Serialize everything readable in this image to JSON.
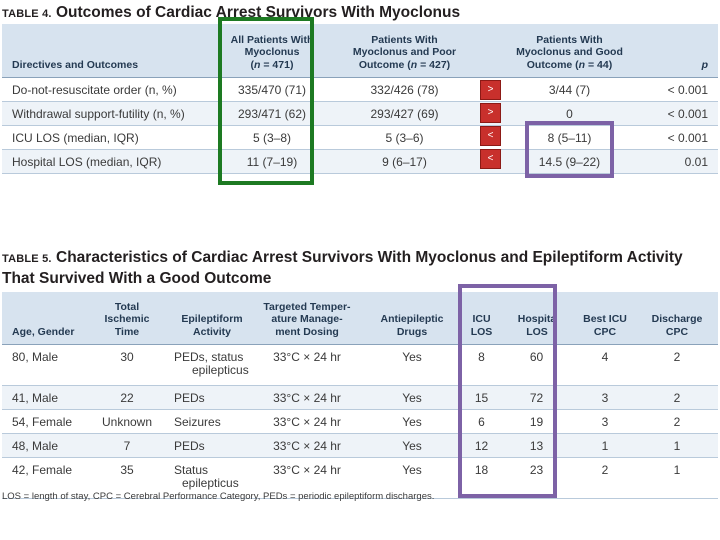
{
  "table4": {
    "label": "TABLE 4.",
    "title": "Outcomes of Cardiac Arrest Survivors With Myoclonus",
    "headers": [
      "Directives and Outcomes",
      "All Patients With\nMyoclonus\n(n = 471)",
      "Patients With\nMyoclonus and Poor\nOutcome (n = 427)",
      "Patients With\nMyoclonus and Good\nOutcome (n = 44)",
      "p"
    ],
    "rows": [
      {
        "label": "Do-not-resuscitate order (n, %)",
        "all": "335/470 (71)",
        "poor": "332/426 (78)",
        "arrow": ">",
        "good": "3/44 (7)",
        "p": "< 0.001"
      },
      {
        "label": "Withdrawal support-futility (n, %)",
        "all": "293/471 (62)",
        "poor": "293/427 (69)",
        "arrow": ">",
        "good": "0",
        "p": "< 0.001"
      },
      {
        "label": "ICU LOS (median, IQR)",
        "all": "5 (3–8)",
        "poor": "5 (3–6)",
        "arrow": "<",
        "good": "8 (5–11)",
        "p": "< 0.001"
      },
      {
        "label": "Hospital LOS (median, IQR)",
        "all": "11 (7–19)",
        "poor": "9 (6–17)",
        "arrow": "<",
        "good": "14.5 (9–22)",
        "p": "0.01"
      }
    ]
  },
  "table5": {
    "label": "TABLE 5.",
    "title": "Characteristics of Cardiac Arrest Survivors With Myoclonus and Epileptiform Activity That Survived With a Good Outcome",
    "headers": [
      "Age, Gender",
      "Total\nIschemic\nTime",
      "Epileptiform\nActivity",
      "Targeted Temper-\nature Manage-\nment Dosing",
      "Antiepileptic\nDrugs",
      "ICU\nLOS",
      "Hospita\nLOS",
      "Best ICU\nCPC",
      "Discharge\nCPC"
    ],
    "rows": [
      {
        "age": "80, Male",
        "time": "30",
        "activity": "PEDs, status\nepilepticus",
        "ttm": "33°C × 24 hr",
        "aed": "Yes",
        "icu": "8",
        "hosp": "60",
        "best": "4",
        "discharge": "2"
      },
      {
        "age": "41, Male",
        "time": "22",
        "activity": "PEDs",
        "ttm": "33°C × 24 hr",
        "aed": "Yes",
        "icu": "15",
        "hosp": "72",
        "best": "3",
        "discharge": "2"
      },
      {
        "age": "54, Female",
        "time": "Unknown",
        "activity": "Seizures",
        "ttm": "33°C × 24 hr",
        "aed": "Yes",
        "icu": "6",
        "hosp": "19",
        "best": "3",
        "discharge": "2"
      },
      {
        "age": "48, Male",
        "time": "7",
        "activity": "PEDs",
        "ttm": "33°C × 24 hr",
        "aed": "Yes",
        "icu": "12",
        "hosp": "13",
        "best": "1",
        "discharge": "1"
      },
      {
        "age": "42, Female",
        "time": "35",
        "activity": "Status\nepilepticus",
        "ttm": "33°C × 24 hr",
        "aed": "Yes",
        "icu": "18",
        "hosp": "23",
        "best": "2",
        "discharge": "1"
      }
    ],
    "footnote": "LOS = length of stay, CPC = Cerebral Performance Category, PEDs = periodic epileptiform discharges."
  },
  "colors": {
    "header_bg": "#d7e3ef",
    "alt_row_bg": "#eef3f8",
    "arrow_box": "#c8302c",
    "highlight_green": "#1d7a22",
    "highlight_purple": "#7d62a6"
  }
}
